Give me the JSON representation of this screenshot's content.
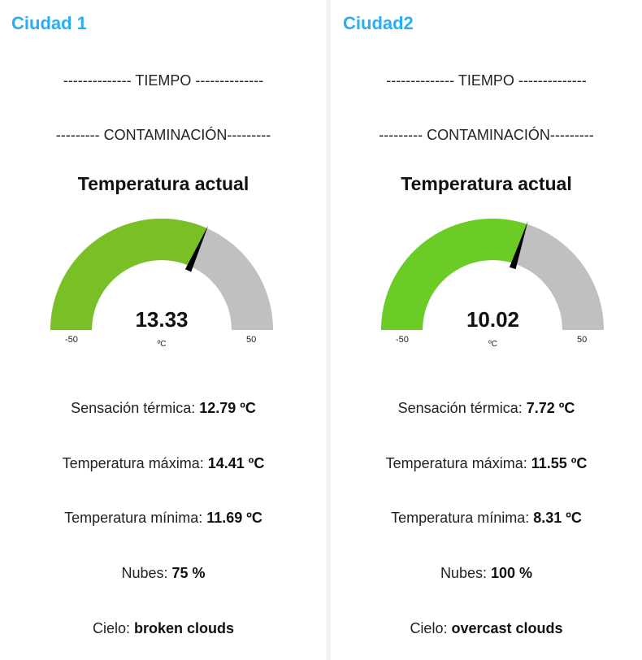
{
  "colors": {
    "accent": "#29aef0",
    "gauge_track": "#c0c0c0",
    "needle": "#000000"
  },
  "section_tiempo": "-------------- TIEMPO --------------",
  "section_contaminacion": "--------- CONTAMINACIÓN---------",
  "gauge_title": "Temperatura actual",
  "labels": {
    "sensacion": "Sensación térmica:",
    "maxima": "Temperatura máxima:",
    "minima": "Temperatura mínima:",
    "nubes": "Nubes:",
    "cielo": "Cielo:"
  },
  "cities": [
    {
      "name": "Ciudad 1",
      "gauge": {
        "value": 13.33,
        "value_text": "13.33",
        "unit": "ºC",
        "min": -50,
        "max": 50,
        "min_text": "-50",
        "max_text": "50",
        "fill_color": "#79bf26"
      },
      "sensacion": "12.79 ºC",
      "maxima": "14.41 ºC",
      "minima": "11.69 ºC",
      "nubes": "75 %",
      "cielo": "broken clouds"
    },
    {
      "name": "Ciudad2",
      "gauge": {
        "value": 10.02,
        "value_text": "10.02",
        "unit": "ºC",
        "min": -50,
        "max": 50,
        "min_text": "-50",
        "max_text": "50",
        "fill_color": "#6ccc26"
      },
      "sensacion": "7.72 ºC",
      "maxima": "11.55 ºC",
      "minima": "8.31 ºC",
      "nubes": "100 %",
      "cielo": "overcast clouds"
    }
  ]
}
